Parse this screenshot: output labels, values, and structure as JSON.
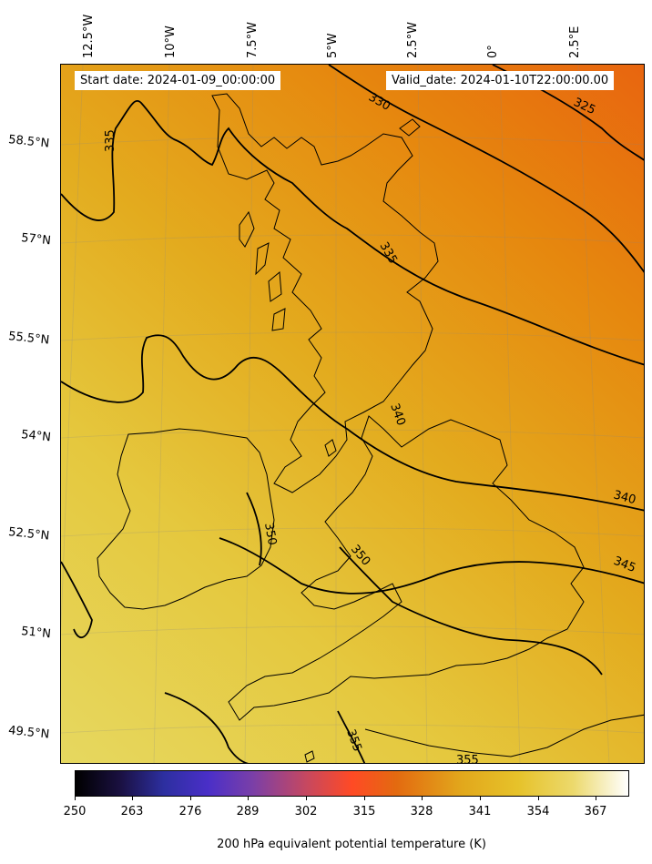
{
  "header": {
    "start_date": "Start date: 2024-01-09_00:00:00",
    "valid_date": "Valid_date: 2024-01-10T22:00:00.00"
  },
  "map": {
    "longitude_labels": [
      "12.5°W",
      "10°W",
      "7.5°W",
      "5°W",
      "2.5°W",
      "0°",
      "2.5°E"
    ],
    "latitude_labels": [
      "58.5°N",
      "57°N",
      "55.5°N",
      "54°N",
      "52.5°N",
      "51°N",
      "49.5°N"
    ],
    "contour_labels": [
      "330",
      "325",
      "335",
      "335",
      "340",
      "340",
      "345",
      "350",
      "350",
      "355",
      "355"
    ],
    "colors": {
      "warm_north": "#e57a0c",
      "mid": "#e2a81c",
      "warm_south": "#e6d55c",
      "contour": "#000000",
      "coastline": "#000000"
    }
  },
  "colorbar": {
    "ticks": [
      "250",
      "263",
      "276",
      "289",
      "302",
      "315",
      "328",
      "341",
      "354",
      "367"
    ],
    "label": "200 hPa equivalent potential temperature (K)",
    "range": [
      250,
      372
    ],
    "colormap": "CMRmap"
  }
}
